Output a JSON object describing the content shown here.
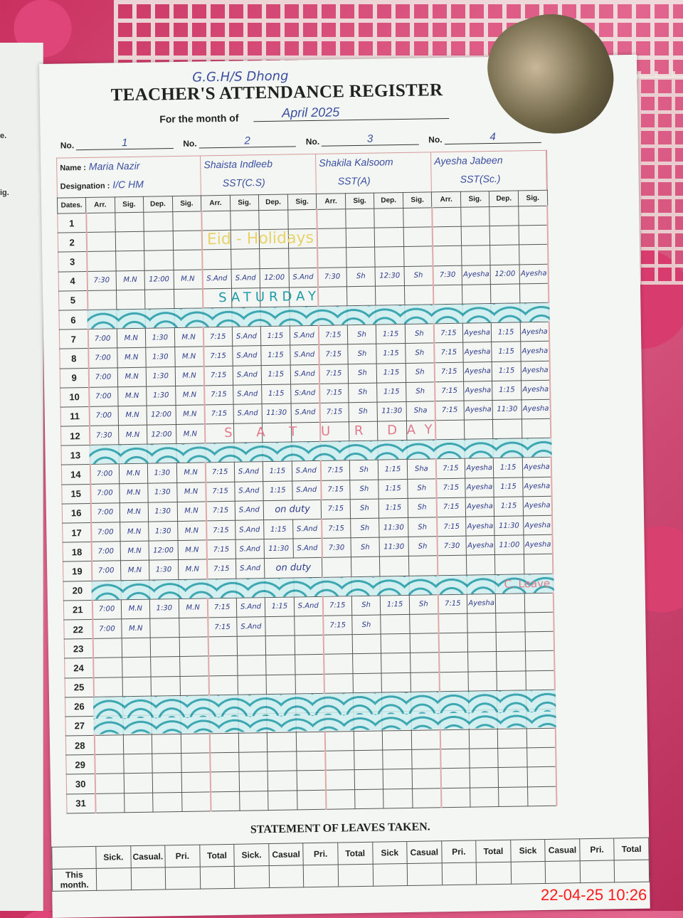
{
  "register": {
    "school": "G.G.H/S Dhong",
    "title": "TEACHER'S ATTENDANCE REGISTER",
    "month_label": "For the month of",
    "month_value": "April 2025",
    "no_label": "No.",
    "name_label": "Name :",
    "designation_label": "Designation :",
    "teachers": [
      {
        "no": "1",
        "name": "Maria Nazir",
        "designation": "I/C HM"
      },
      {
        "no": "2",
        "name": "Shaista Indleeb",
        "designation": "SST(C.S)"
      },
      {
        "no": "3",
        "name": "Shakila Kalsoom",
        "designation": "SST(A)"
      },
      {
        "no": "4",
        "name": "Ayesha Jabeen",
        "designation": "SST(Sc.)"
      }
    ],
    "columns": [
      "Dates.",
      "Arr.",
      "Sig.",
      "Dep.",
      "Sig.",
      "Arr.",
      "Sig.",
      "Dep.",
      "Sig.",
      "Arr.",
      "Sig.",
      "Dep.",
      "Sig.",
      "Arr.",
      "Sig.",
      "Dep.",
      "Sig."
    ],
    "rows": [
      {
        "date": "1",
        "cells": []
      },
      {
        "date": "2",
        "cells": []
      },
      {
        "date": "3",
        "cells": []
      },
      {
        "date": "4",
        "cells": [
          "7:30",
          "M.N",
          "12:00",
          "M.N",
          "S.And",
          "S.And",
          "12:00",
          "S.And",
          "7:30",
          "Sh",
          "12:30",
          "Sh",
          "7:30",
          "Ayesha",
          "12:00",
          "Ayesha"
        ]
      },
      {
        "date": "5",
        "cells": []
      },
      {
        "date": "6",
        "cells": []
      },
      {
        "date": "7",
        "cells": [
          "7:00",
          "M.N",
          "1:30",
          "M.N",
          "7:15",
          "S.And",
          "1:15",
          "S.And",
          "7:15",
          "Sh",
          "1:15",
          "Sh",
          "7:15",
          "Ayesha",
          "1:15",
          "Ayesha"
        ]
      },
      {
        "date": "8",
        "cells": [
          "7:00",
          "M.N",
          "1:30",
          "M.N",
          "7:15",
          "S.And",
          "1:15",
          "S.And",
          "7:15",
          "Sh",
          "1:15",
          "Sh",
          "7:15",
          "Ayesha",
          "1:15",
          "Ayesha"
        ]
      },
      {
        "date": "9",
        "cells": [
          "7:00",
          "M.N",
          "1:30",
          "M.N",
          "7:15",
          "S.And",
          "1:15",
          "S.And",
          "7:15",
          "Sh",
          "1:15",
          "Sh",
          "7:15",
          "Ayesha",
          "1:15",
          "Ayesha"
        ]
      },
      {
        "date": "10",
        "cells": [
          "7:00",
          "M.N",
          "1:30",
          "M.N",
          "7:15",
          "S.And",
          "1:15",
          "S:And",
          "7:15",
          "Sh",
          "1:15",
          "Sh",
          "7:15",
          "Ayesha",
          "1:15",
          "Ayesha"
        ]
      },
      {
        "date": "11",
        "cells": [
          "7:00",
          "M.N",
          "12:00",
          "M.N",
          "7:15",
          "S.And",
          "11:30",
          "S.And",
          "7:15",
          "Sh",
          "11:30",
          "Sha",
          "7:15",
          "Ayesha",
          "11:30",
          "Ayesha"
        ]
      },
      {
        "date": "12",
        "cells": [
          "7:30",
          "M.N",
          "12:00",
          "M.N"
        ]
      },
      {
        "date": "13",
        "cells": []
      },
      {
        "date": "14",
        "cells": [
          "7:00",
          "M.N",
          "1:30",
          "M.N",
          "7:15",
          "S.And",
          "1:15",
          "S.And",
          "7:15",
          "Sh",
          "1:15",
          "Sha",
          "7:15",
          "Ayesha",
          "1:15",
          "Ayesha"
        ]
      },
      {
        "date": "15",
        "cells": [
          "7:00",
          "M.N",
          "1:30",
          "M.N",
          "7:15",
          "S.And",
          "1:15",
          "S.And",
          "7:15",
          "Sh",
          "1:15",
          "Sh",
          "7:15",
          "Ayesha",
          "1:15",
          "Ayesha"
        ]
      },
      {
        "date": "16",
        "cells": [
          "7:00",
          "M.N",
          "1:30",
          "M.N",
          "7:15",
          "S.And",
          "on duty",
          "",
          "7:15",
          "Sh",
          "1:15",
          "Sh",
          "7:15",
          "Ayesha",
          "1:15",
          "Ayesha"
        ]
      },
      {
        "date": "17",
        "cells": [
          "7:00",
          "M.N",
          "1:30",
          "M.N",
          "7:15",
          "S.And",
          "1:15",
          "S.And",
          "7:15",
          "Sh",
          "11:30",
          "Sh",
          "7:15",
          "Ayesha",
          "11:30",
          "Ayesha"
        ]
      },
      {
        "date": "18",
        "cells": [
          "7:00",
          "M.N",
          "12:00",
          "M.N",
          "7:15",
          "S.And",
          "11:30",
          "S.And",
          "7:30",
          "Sh",
          "11:30",
          "Sh",
          "7:30",
          "Ayesha",
          "11:00",
          "Ayesha"
        ]
      },
      {
        "date": "19",
        "cells": [
          "7:00",
          "M.N",
          "1:30",
          "M.N",
          "7:15",
          "S.And",
          "on duty",
          ""
        ]
      },
      {
        "date": "20",
        "cells": []
      },
      {
        "date": "21",
        "cells": [
          "7:00",
          "M.N",
          "1:30",
          "M.N",
          "7:15",
          "S.And",
          "1:15",
          "S.And",
          "7:15",
          "Sh",
          "1:15",
          "Sh",
          "7:15",
          "Ayesha",
          "",
          ""
        ]
      },
      {
        "date": "22",
        "cells": [
          "7:00",
          "M.N",
          "",
          "",
          "7:15",
          "S.And",
          "",
          "",
          "7:15",
          "Sh",
          "",
          "",
          "",
          "",
          "",
          ""
        ]
      },
      {
        "date": "23",
        "cells": []
      },
      {
        "date": "24",
        "cells": []
      },
      {
        "date": "25",
        "cells": []
      },
      {
        "date": "26",
        "cells": []
      },
      {
        "date": "27",
        "cells": []
      },
      {
        "date": "28",
        "cells": []
      },
      {
        "date": "29",
        "cells": []
      },
      {
        "date": "30",
        "cells": []
      },
      {
        "date": "31",
        "cells": []
      }
    ],
    "annotations": {
      "eid": "Eid - Holidays",
      "saturday_5": "SATURDAY",
      "saturday_12": "S A T U R DAY",
      "c_leave": "C. Leave"
    },
    "colors": {
      "ink_blue": "#2d3a8a",
      "band_teal": "#1e9aa6",
      "annotation_pink": "#e07a8a",
      "stamp_red": "#ff1a1a"
    }
  },
  "leaves": {
    "title": "STATEMENT OF LEAVES TAKEN.",
    "headers": [
      "Sick.",
      "Casual.",
      "Pri.",
      "Total",
      "Sick.",
      "Casual",
      "Pri.",
      "Total",
      "Sick",
      "Casual",
      "Pri.",
      "Total",
      "Sick",
      "Casual",
      "Pri.",
      "Total"
    ],
    "row_label": "This month."
  },
  "left_page_fragments": [
    "e.",
    "ig."
  ],
  "timestamp": "22-04-25  10:26"
}
